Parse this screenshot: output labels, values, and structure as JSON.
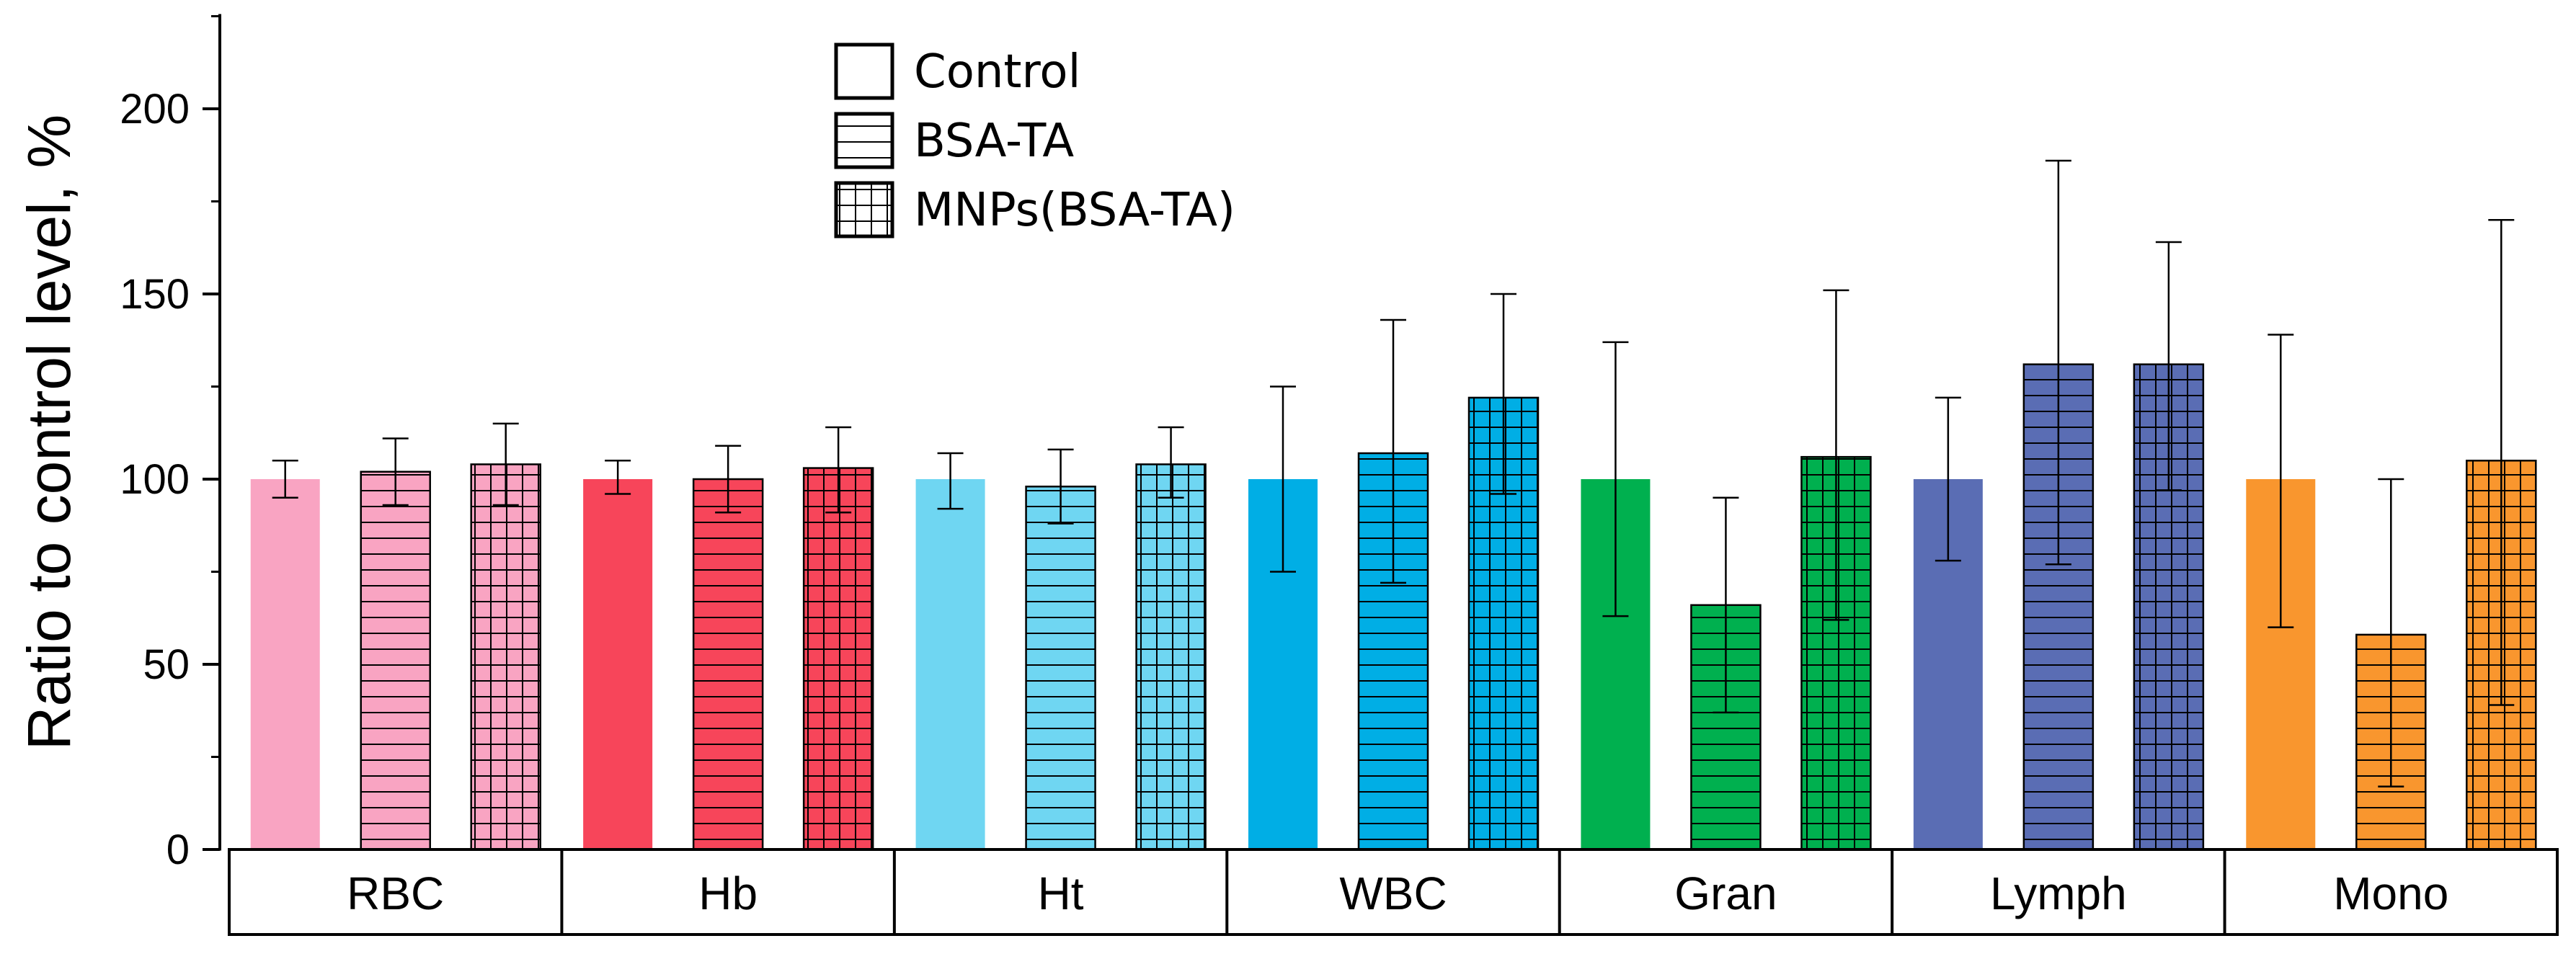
{
  "chart_data": {
    "type": "bar",
    "title": "",
    "xlabel": "",
    "ylabel": "Ratio to control level, %",
    "ylim": [
      0,
      225
    ],
    "yticks": [
      0,
      50,
      100,
      150,
      200
    ],
    "yticks_minor": [
      25,
      75,
      125,
      175,
      225
    ],
    "categories": [
      "RBC",
      "Hb",
      "Ht",
      "WBC",
      "Gran",
      "Lymph",
      "Mono"
    ],
    "category_colors": [
      "#F9A4C2",
      "#F7455A",
      "#6FD6F2",
      "#00AEE5",
      "#00B04F",
      "#5A6DB4",
      "#F9962E"
    ],
    "series": [
      {
        "name": "Control",
        "pattern": "solid",
        "values": [
          100,
          100,
          100,
          100,
          100,
          100,
          100
        ],
        "err_low": [
          95,
          96,
          92,
          75,
          63,
          78,
          60
        ],
        "err_high": [
          105,
          105,
          107,
          125,
          137,
          122,
          139
        ]
      },
      {
        "name": "BSA-TA",
        "pattern": "horizontal-lines",
        "values": [
          102,
          100,
          98,
          107,
          66,
          131,
          58
        ],
        "err_low": [
          93,
          91,
          88,
          72,
          37,
          77,
          17
        ],
        "err_high": [
          111,
          109,
          108,
          143,
          95,
          186,
          100
        ]
      },
      {
        "name": "MNPs(BSA-TA)",
        "pattern": "grid",
        "values": [
          104,
          103,
          104,
          122,
          106,
          131,
          105
        ],
        "err_low": [
          93,
          91,
          95,
          96,
          62,
          97,
          39
        ],
        "err_high": [
          115,
          114,
          114,
          150,
          151,
          164,
          170
        ]
      }
    ],
    "legend": {
      "placement": "top-center",
      "entries": [
        "Control",
        "BSA-TA",
        "MNPs(BSA-TA)"
      ]
    }
  }
}
